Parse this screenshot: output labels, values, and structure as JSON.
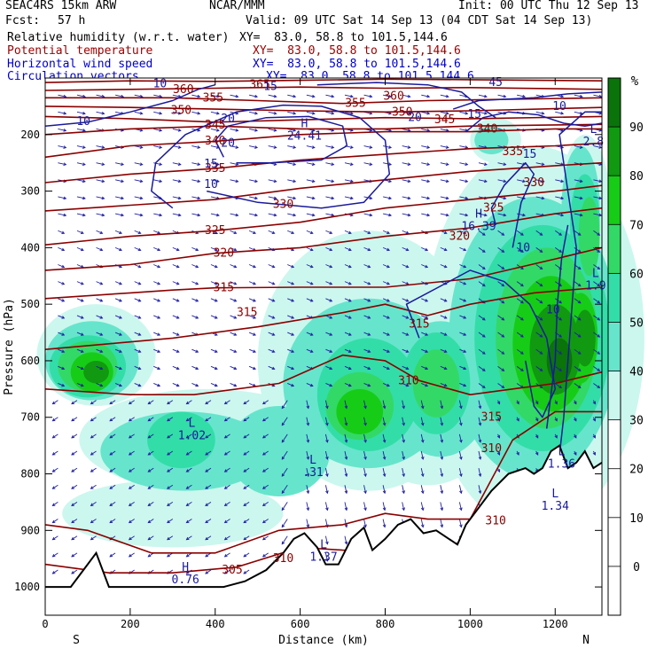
{
  "header": {
    "model": "SEAC4RS 15km ARW",
    "org": "NCAR/MMM",
    "init": "Init: 00 UTC Thu 12 Sep 13",
    "fcst_label": "Fcst:",
    "fcst_value": "57 h",
    "valid": "Valid: 09 UTC Sat 14 Sep 13 (04 CDT Sat 14 Sep 13)",
    "fields": [
      {
        "name": "Relative humidity (w.r.t. water)",
        "xy": "XY=  83.0, 58.8 to 101.5,144.6",
        "color": "#000000"
      },
      {
        "name": "Potential temperature",
        "xy": "XY=  83.0, 58.8 to 101.5,144.6",
        "color": "#9b0000"
      },
      {
        "name": "Horizontal wind speed",
        "xy": "XY=  83.0, 58.8 to 101.5,144.6",
        "color": "#0000c8"
      },
      {
        "name": "Circulation vectors",
        "xy": "XY=  83.0, 58.8 to 101.5,144.6",
        "color": "#0000c8"
      }
    ]
  },
  "chart_data": {
    "type": "heatmap",
    "xlabel": "Distance (km)",
    "ylabel": "Pressure (hPa)",
    "x_ticks": [
      0,
      200,
      400,
      600,
      800,
      1000,
      1200
    ],
    "y_ticks": [
      200,
      300,
      400,
      500,
      600,
      700,
      800,
      900,
      1000
    ],
    "xlim": [
      0,
      1310
    ],
    "ylim": [
      1050,
      100
    ],
    "end_labels": {
      "left": "S",
      "right": "N"
    },
    "colorbar": {
      "unit": "%",
      "ticks": [
        0,
        10,
        20,
        30,
        40,
        50,
        60,
        70,
        80,
        90
      ],
      "bins": [
        {
          "range": [
            -10,
            30
          ],
          "color": "#ffffff"
        },
        {
          "range": [
            30,
            40
          ],
          "color": "#ccf7ee"
        },
        {
          "range": [
            40,
            50
          ],
          "color": "#66e5cc"
        },
        {
          "range": [
            50,
            60
          ],
          "color": "#33dda8"
        },
        {
          "range": [
            60,
            70
          ],
          "color": "#33d966"
        },
        {
          "range": [
            70,
            80
          ],
          "color": "#17cc17"
        },
        {
          "range": [
            80,
            90
          ],
          "color": "#119911"
        },
        {
          "range": [
            90,
            100
          ],
          "color": "#0a730a"
        }
      ]
    },
    "theta_labels": [
      {
        "text": "360",
        "x": 325,
        "p": 120
      },
      {
        "text": "365",
        "x": 505,
        "p": 112
      },
      {
        "text": "355",
        "x": 395,
        "p": 135
      },
      {
        "text": "355",
        "x": 730,
        "p": 145
      },
      {
        "text": "360",
        "x": 820,
        "p": 132
      },
      {
        "text": "350",
        "x": 320,
        "p": 157
      },
      {
        "text": "350",
        "x": 840,
        "p": 160
      },
      {
        "text": "345",
        "x": 940,
        "p": 174
      },
      {
        "text": "340",
        "x": 1040,
        "p": 190
      },
      {
        "text": "335",
        "x": 1100,
        "p": 230
      },
      {
        "text": "330",
        "x": 1150,
        "p": 285
      },
      {
        "text": "325",
        "x": 1055,
        "p": 330
      },
      {
        "text": "320",
        "x": 975,
        "p": 380
      },
      {
        "text": "315",
        "x": 880,
        "p": 535
      },
      {
        "text": "315",
        "x": 475,
        "p": 515
      },
      {
        "text": "310",
        "x": 855,
        "p": 635
      },
      {
        "text": "335",
        "x": 400,
        "p": 260
      },
      {
        "text": "340",
        "x": 400,
        "p": 211
      },
      {
        "text": "345",
        "x": 400,
        "p": 183
      },
      {
        "text": "330",
        "x": 560,
        "p": 323
      },
      {
        "text": "325",
        "x": 400,
        "p": 370
      },
      {
        "text": "320",
        "x": 420,
        "p": 410
      },
      {
        "text": "315",
        "x": 420,
        "p": 471
      },
      {
        "text": "315",
        "x": 1050,
        "p": 700
      },
      {
        "text": "310",
        "x": 1050,
        "p": 755
      },
      {
        "text": "310",
        "x": 1060,
        "p": 883
      },
      {
        "text": "310",
        "x": 560,
        "p": 950
      },
      {
        "text": "305",
        "x": 440,
        "p": 970
      }
    ],
    "wind_labels": [
      {
        "text": "10",
        "x": 270,
        "p": 110
      },
      {
        "text": "15",
        "x": 530,
        "p": 115
      },
      {
        "text": "45",
        "x": 1060,
        "p": 108
      },
      {
        "text": "20",
        "x": 430,
        "p": 172
      },
      {
        "text": "10",
        "x": 90,
        "p": 177
      },
      {
        "text": "20",
        "x": 870,
        "p": 170
      },
      {
        "text": "15",
        "x": 1010,
        "p": 164
      },
      {
        "text": "10",
        "x": 1210,
        "p": 150
      },
      {
        "text": "20",
        "x": 430,
        "p": 215
      },
      {
        "text": "15",
        "x": 390,
        "p": 252
      },
      {
        "text": "10",
        "x": 390,
        "p": 288
      },
      {
        "text": "15",
        "x": 1140,
        "p": 235
      },
      {
        "text": "10",
        "x": 1125,
        "p": 400
      },
      {
        "text": "10",
        "x": 1195,
        "p": 510
      }
    ],
    "extrema": [
      {
        "type": "H",
        "value": "24.41",
        "x": 610,
        "p": 190
      },
      {
        "type": "H",
        "value": "16.39",
        "x": 1020,
        "p": 350
      },
      {
        "type": "L",
        "value": "2.8",
        "x": 1290,
        "p": 200
      },
      {
        "type": "L",
        "value": "1.9",
        "x": 1295,
        "p": 455
      },
      {
        "type": "L",
        "value": "1.02",
        "x": 345,
        "p": 720
      },
      {
        "type": "L",
        "value": ".31",
        "x": 630,
        "p": 785
      },
      {
        "type": "L",
        "value": "1.36",
        "x": 1215,
        "p": 770
      },
      {
        "type": "L",
        "value": "1.34",
        "x": 1200,
        "p": 845
      },
      {
        "type": "L",
        "value": "1.37",
        "x": 655,
        "p": 935
      },
      {
        "type": "H",
        "value": "0.76",
        "x": 330,
        "p": 975
      }
    ]
  }
}
